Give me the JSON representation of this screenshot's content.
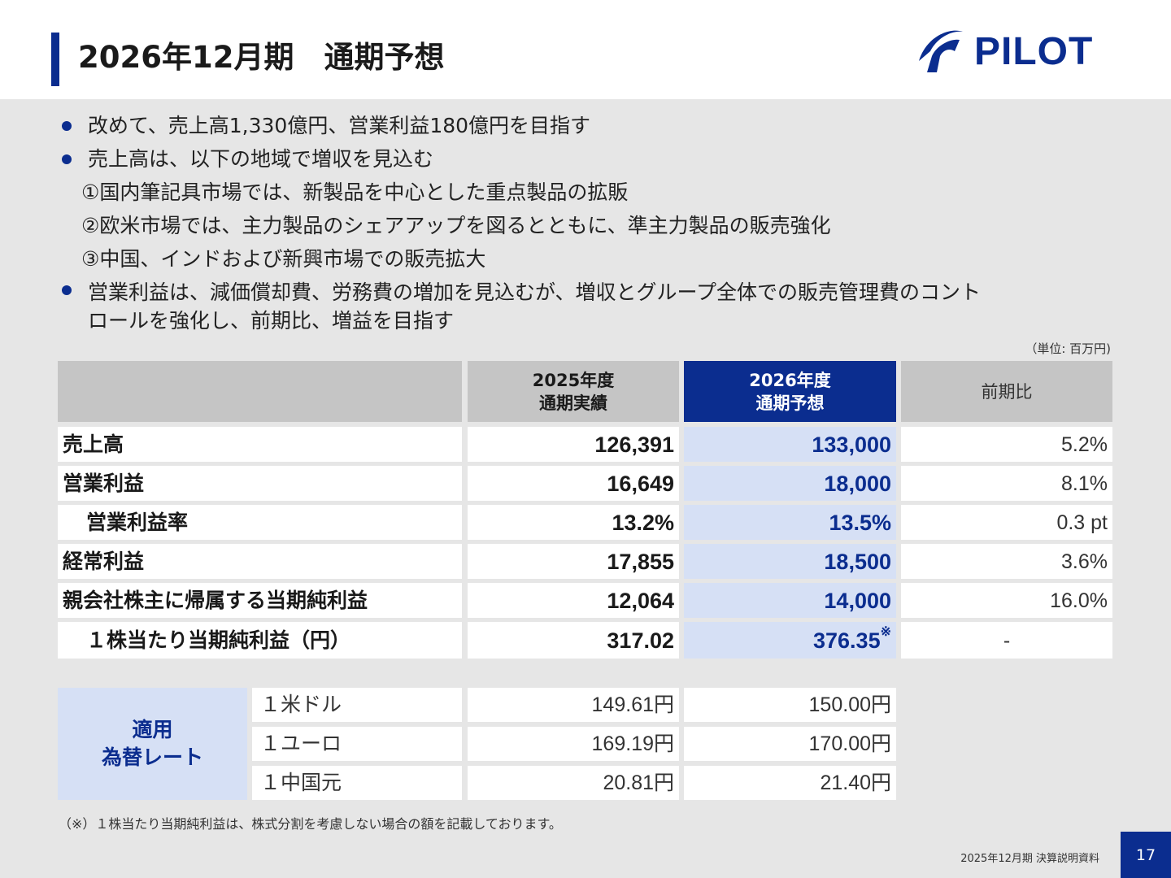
{
  "header": {
    "title": "2026年12月期　通期予想",
    "logo_text": "PILOT",
    "brand_color": "#0b2d8f"
  },
  "bullets": [
    {
      "text": "改めて、売上高1,330億円、営業利益180億円を目指す"
    },
    {
      "text": "売上高は、以下の地域で増収を見込む"
    },
    {
      "sub": "①国内筆記具市場では、新製品を中心とした重点製品の拡販"
    },
    {
      "sub": "②欧米市場では、主力製品のシェアアップを図るとともに、準主力製品の販売強化"
    },
    {
      "sub": "③中国、インドおよび新興市場での販売拡大"
    },
    {
      "text_line1": "営業利益は、減価償却費、労務費の増加を見込むが、増収とグループ全体での販売管理費のコント",
      "text_line2": "ロールを強化し、前期比、増益を目指す"
    }
  ],
  "table": {
    "unit": "（単位: 百万円)",
    "headers": {
      "fy2025": "2025年度\n通期実績",
      "fy2026": "2026年度\n通期予想",
      "yoy": "前期比"
    },
    "rows": [
      {
        "label": "売上高",
        "fy2025": "126,391",
        "fy2026": "133,000",
        "yoy": "5.2%"
      },
      {
        "label": "営業利益",
        "fy2025": "16,649",
        "fy2026": "18,000",
        "yoy": "8.1%"
      },
      {
        "label": "　営業利益率",
        "fy2025": "13.2%",
        "fy2026": "13.5%",
        "yoy": "0.3 pt"
      },
      {
        "label": "経常利益",
        "fy2025": "17,855",
        "fy2026": "18,500",
        "yoy": "3.6%"
      },
      {
        "label": "親会社株主に帰属する当期純利益",
        "fy2025": "12,064",
        "fy2026": "14,000",
        "yoy": "16.0%"
      },
      {
        "label": "　１株当たり当期純利益（円）",
        "fy2025": "317.02",
        "fy2026": "376.35",
        "fy2026_mark": "※",
        "yoy": "-"
      }
    ]
  },
  "fx": {
    "label": "適用\n為替レート",
    "rows": [
      {
        "name": "１米ドル",
        "fy2025": "149.61円",
        "fy2026": "150.00円"
      },
      {
        "name": "１ユーロ",
        "fy2025": "169.19円",
        "fy2026": "170.00円"
      },
      {
        "name": "１中国元",
        "fy2025": "20.81円",
        "fy2026": "21.40円"
      }
    ]
  },
  "footnote": "（※）１株当たり当期純利益は、株式分割を考慮しない場合の額を記載しております。",
  "footer": {
    "doc_title": "2025年12月期 決算説明資料",
    "page": "17"
  }
}
